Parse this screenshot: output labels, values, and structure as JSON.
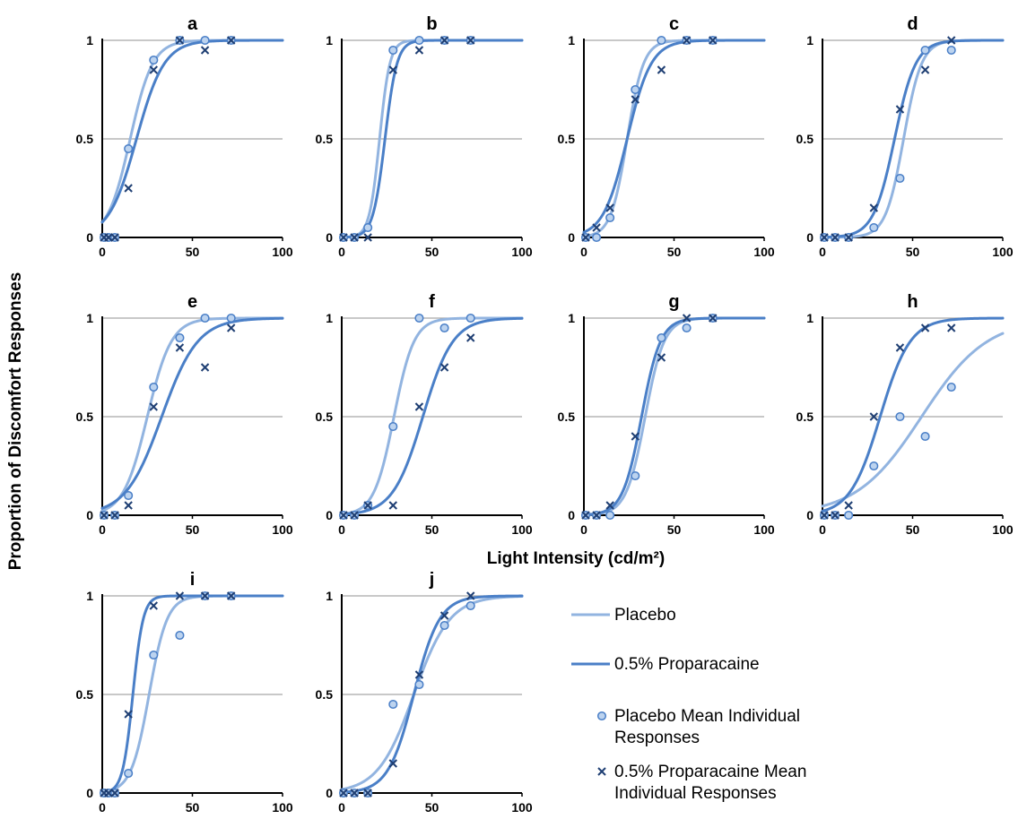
{
  "colors": {
    "placebo": "#92b4e0",
    "proparacaine": "#4a7fc7",
    "cross": "#1f3f73",
    "grid": "#a6a6a6",
    "axis": "#000000"
  },
  "chart_data": {
    "type": "scatter",
    "shared_x_label": "Light Intensity (cd/m²)",
    "shared_y_label": "Proportion of Discomfort Responses",
    "xlim": [
      0,
      100
    ],
    "ylim": [
      0,
      1
    ],
    "x_ticks": [
      "0",
      "50",
      "100"
    ],
    "y_ticks": [
      "0",
      "0.5",
      "1"
    ],
    "grid": "horizontal",
    "legend": {
      "placement": "bottom-right",
      "items": [
        {
          "label": "Placebo",
          "kind": "line",
          "series": "placebo"
        },
        {
          "label": "0.5% Proparacaine",
          "kind": "line",
          "series": "proparacaine"
        },
        {
          "label": "Placebo Mean Individual Responses",
          "lines": [
            "Placebo Mean Individual",
            "Responses"
          ],
          "kind": "circle",
          "series": "placebo"
        },
        {
          "label": "0.5% Proparacaine Mean Individual Responses",
          "lines": [
            "0.5% Proparacaine Mean",
            "Individual Responses"
          ],
          "kind": "cross",
          "series": "proparacaine"
        }
      ]
    },
    "panels": [
      {
        "title": "a",
        "placebo": {
          "fit": {
            "x50": 15.5,
            "slope": 0.16
          },
          "points": [
            [
              1,
              0
            ],
            [
              3.5,
              0
            ],
            [
              7,
              0
            ],
            [
              14.5,
              0.45
            ],
            [
              28.5,
              0.9
            ],
            [
              43,
              1
            ],
            [
              57,
              1
            ],
            [
              71.5,
              1
            ]
          ]
        },
        "proparacaine": {
          "fit": {
            "x50": 19,
            "slope": 0.13
          },
          "points": [
            [
              1,
              0
            ],
            [
              3.5,
              0
            ],
            [
              7,
              0
            ],
            [
              14.5,
              0.25
            ],
            [
              28.5,
              0.85
            ],
            [
              43,
              1
            ],
            [
              57,
              0.95
            ],
            [
              71.5,
              1
            ]
          ]
        }
      },
      {
        "title": "b",
        "placebo": {
          "fit": {
            "x50": 21,
            "slope": 0.35
          },
          "points": [
            [
              1,
              0
            ],
            [
              7,
              0
            ],
            [
              14.5,
              0.05
            ],
            [
              28.5,
              0.95
            ],
            [
              43,
              1
            ],
            [
              57,
              1
            ],
            [
              71.5,
              1
            ]
          ]
        },
        "proparacaine": {
          "fit": {
            "x50": 24,
            "slope": 0.3
          },
          "points": [
            [
              1,
              0
            ],
            [
              7,
              0
            ],
            [
              14.5,
              0
            ],
            [
              28.5,
              0.85
            ],
            [
              43,
              0.95
            ],
            [
              57,
              1
            ],
            [
              71.5,
              1
            ]
          ]
        }
      },
      {
        "title": "c",
        "placebo": {
          "fit": {
            "x50": 24,
            "slope": 0.22
          },
          "points": [
            [
              1,
              0
            ],
            [
              7,
              0
            ],
            [
              14.5,
              0.1
            ],
            [
              28.5,
              0.75
            ],
            [
              43,
              1
            ],
            [
              57,
              1
            ],
            [
              71.5,
              1
            ]
          ]
        },
        "proparacaine": {
          "fit": {
            "x50": 24,
            "slope": 0.15
          },
          "points": [
            [
              1,
              0
            ],
            [
              7,
              0.05
            ],
            [
              14.5,
              0.15
            ],
            [
              28.5,
              0.7
            ],
            [
              43,
              0.85
            ],
            [
              57,
              1
            ],
            [
              71.5,
              1
            ]
          ]
        }
      },
      {
        "title": "d",
        "placebo": {
          "fit": {
            "x50": 45,
            "slope": 0.2
          },
          "points": [
            [
              1,
              0
            ],
            [
              7,
              0
            ],
            [
              14.5,
              0
            ],
            [
              28.5,
              0.05
            ],
            [
              43,
              0.3
            ],
            [
              57,
              0.95
            ],
            [
              71.5,
              0.95
            ]
          ]
        },
        "proparacaine": {
          "fit": {
            "x50": 40,
            "slope": 0.17
          },
          "points": [
            [
              1,
              0
            ],
            [
              7,
              0
            ],
            [
              14.5,
              0
            ],
            [
              28.5,
              0.15
            ],
            [
              43,
              0.65
            ],
            [
              57,
              0.85
            ],
            [
              71.5,
              1
            ]
          ]
        }
      },
      {
        "title": "e",
        "placebo": {
          "fit": {
            "x50": 25,
            "slope": 0.15
          },
          "points": [
            [
              1,
              0
            ],
            [
              7,
              0
            ],
            [
              14.5,
              0.1
            ],
            [
              28.5,
              0.65
            ],
            [
              43,
              0.9
            ],
            [
              57,
              1
            ],
            [
              71.5,
              1
            ]
          ]
        },
        "proparacaine": {
          "fit": {
            "x50": 33,
            "slope": 0.1
          },
          "points": [
            [
              1,
              0
            ],
            [
              7,
              0
            ],
            [
              14.5,
              0.05
            ],
            [
              28.5,
              0.55
            ],
            [
              43,
              0.85
            ],
            [
              57,
              0.75
            ],
            [
              71.5,
              0.95
            ]
          ]
        }
      },
      {
        "title": "f",
        "placebo": {
          "fit": {
            "x50": 29,
            "slope": 0.18
          },
          "points": [
            [
              1,
              0
            ],
            [
              7,
              0
            ],
            [
              14.5,
              0.05
            ],
            [
              28.5,
              0.45
            ],
            [
              43,
              1
            ],
            [
              57,
              0.95
            ],
            [
              71.5,
              1
            ]
          ]
        },
        "proparacaine": {
          "fit": {
            "x50": 45,
            "slope": 0.12
          },
          "points": [
            [
              1,
              0
            ],
            [
              7,
              0
            ],
            [
              14.5,
              0.05
            ],
            [
              28.5,
              0.05
            ],
            [
              43,
              0.55
            ],
            [
              57,
              0.75
            ],
            [
              71.5,
              0.9
            ]
          ]
        }
      },
      {
        "title": "g",
        "placebo": {
          "fit": {
            "x50": 34,
            "slope": 0.19
          },
          "points": [
            [
              1,
              0
            ],
            [
              7,
              0
            ],
            [
              14.5,
              0
            ],
            [
              28.5,
              0.2
            ],
            [
              43,
              0.9
            ],
            [
              57,
              0.95
            ],
            [
              71.5,
              1
            ]
          ]
        },
        "proparacaine": {
          "fit": {
            "x50": 32,
            "slope": 0.19
          },
          "points": [
            [
              1,
              0
            ],
            [
              7,
              0
            ],
            [
              14.5,
              0.05
            ],
            [
              28.5,
              0.4
            ],
            [
              43,
              0.8
            ],
            [
              57,
              1
            ],
            [
              71.5,
              1
            ]
          ]
        }
      },
      {
        "title": "h",
        "placebo": {
          "fit": {
            "x50": 55,
            "slope": 0.055
          },
          "points": [
            [
              1,
              0
            ],
            [
              7,
              0
            ],
            [
              14.5,
              0
            ],
            [
              28.5,
              0.25
            ],
            [
              43,
              0.5
            ],
            [
              57,
              0.4
            ],
            [
              71.5,
              0.65
            ]
          ]
        },
        "proparacaine": {
          "fit": {
            "x50": 32,
            "slope": 0.12
          },
          "points": [
            [
              1,
              0
            ],
            [
              7,
              0
            ],
            [
              14.5,
              0.05
            ],
            [
              28.5,
              0.5
            ],
            [
              43,
              0.85
            ],
            [
              57,
              0.95
            ],
            [
              71.5,
              0.95
            ]
          ]
        }
      },
      {
        "title": "i",
        "placebo": {
          "fit": {
            "x50": 26,
            "slope": 0.2
          },
          "points": [
            [
              1,
              0
            ],
            [
              3.5,
              0
            ],
            [
              7,
              0
            ],
            [
              14.5,
              0.1
            ],
            [
              28.5,
              0.7
            ],
            [
              43,
              0.8
            ],
            [
              57,
              1
            ],
            [
              71.5,
              1
            ]
          ]
        },
        "proparacaine": {
          "fit": {
            "x50": 17,
            "slope": 0.35
          },
          "points": [
            [
              1,
              0
            ],
            [
              3.5,
              0
            ],
            [
              7,
              0
            ],
            [
              14.5,
              0.4
            ],
            [
              28.5,
              0.95
            ],
            [
              43,
              1
            ],
            [
              57,
              1
            ],
            [
              71.5,
              1
            ]
          ]
        }
      },
      {
        "title": "j",
        "placebo": {
          "fit": {
            "x50": 40,
            "slope": 0.1
          },
          "points": [
            [
              1,
              0
            ],
            [
              7,
              0
            ],
            [
              14.5,
              0
            ],
            [
              28.5,
              0.45
            ],
            [
              43,
              0.55
            ],
            [
              57,
              0.85
            ],
            [
              71.5,
              0.95
            ]
          ]
        },
        "proparacaine": {
          "fit": {
            "x50": 40,
            "slope": 0.14
          },
          "points": [
            [
              1,
              0
            ],
            [
              7,
              0
            ],
            [
              14.5,
              0
            ],
            [
              28.5,
              0.15
            ],
            [
              43,
              0.6
            ],
            [
              57,
              0.9
            ],
            [
              71.5,
              1
            ]
          ]
        }
      }
    ]
  }
}
